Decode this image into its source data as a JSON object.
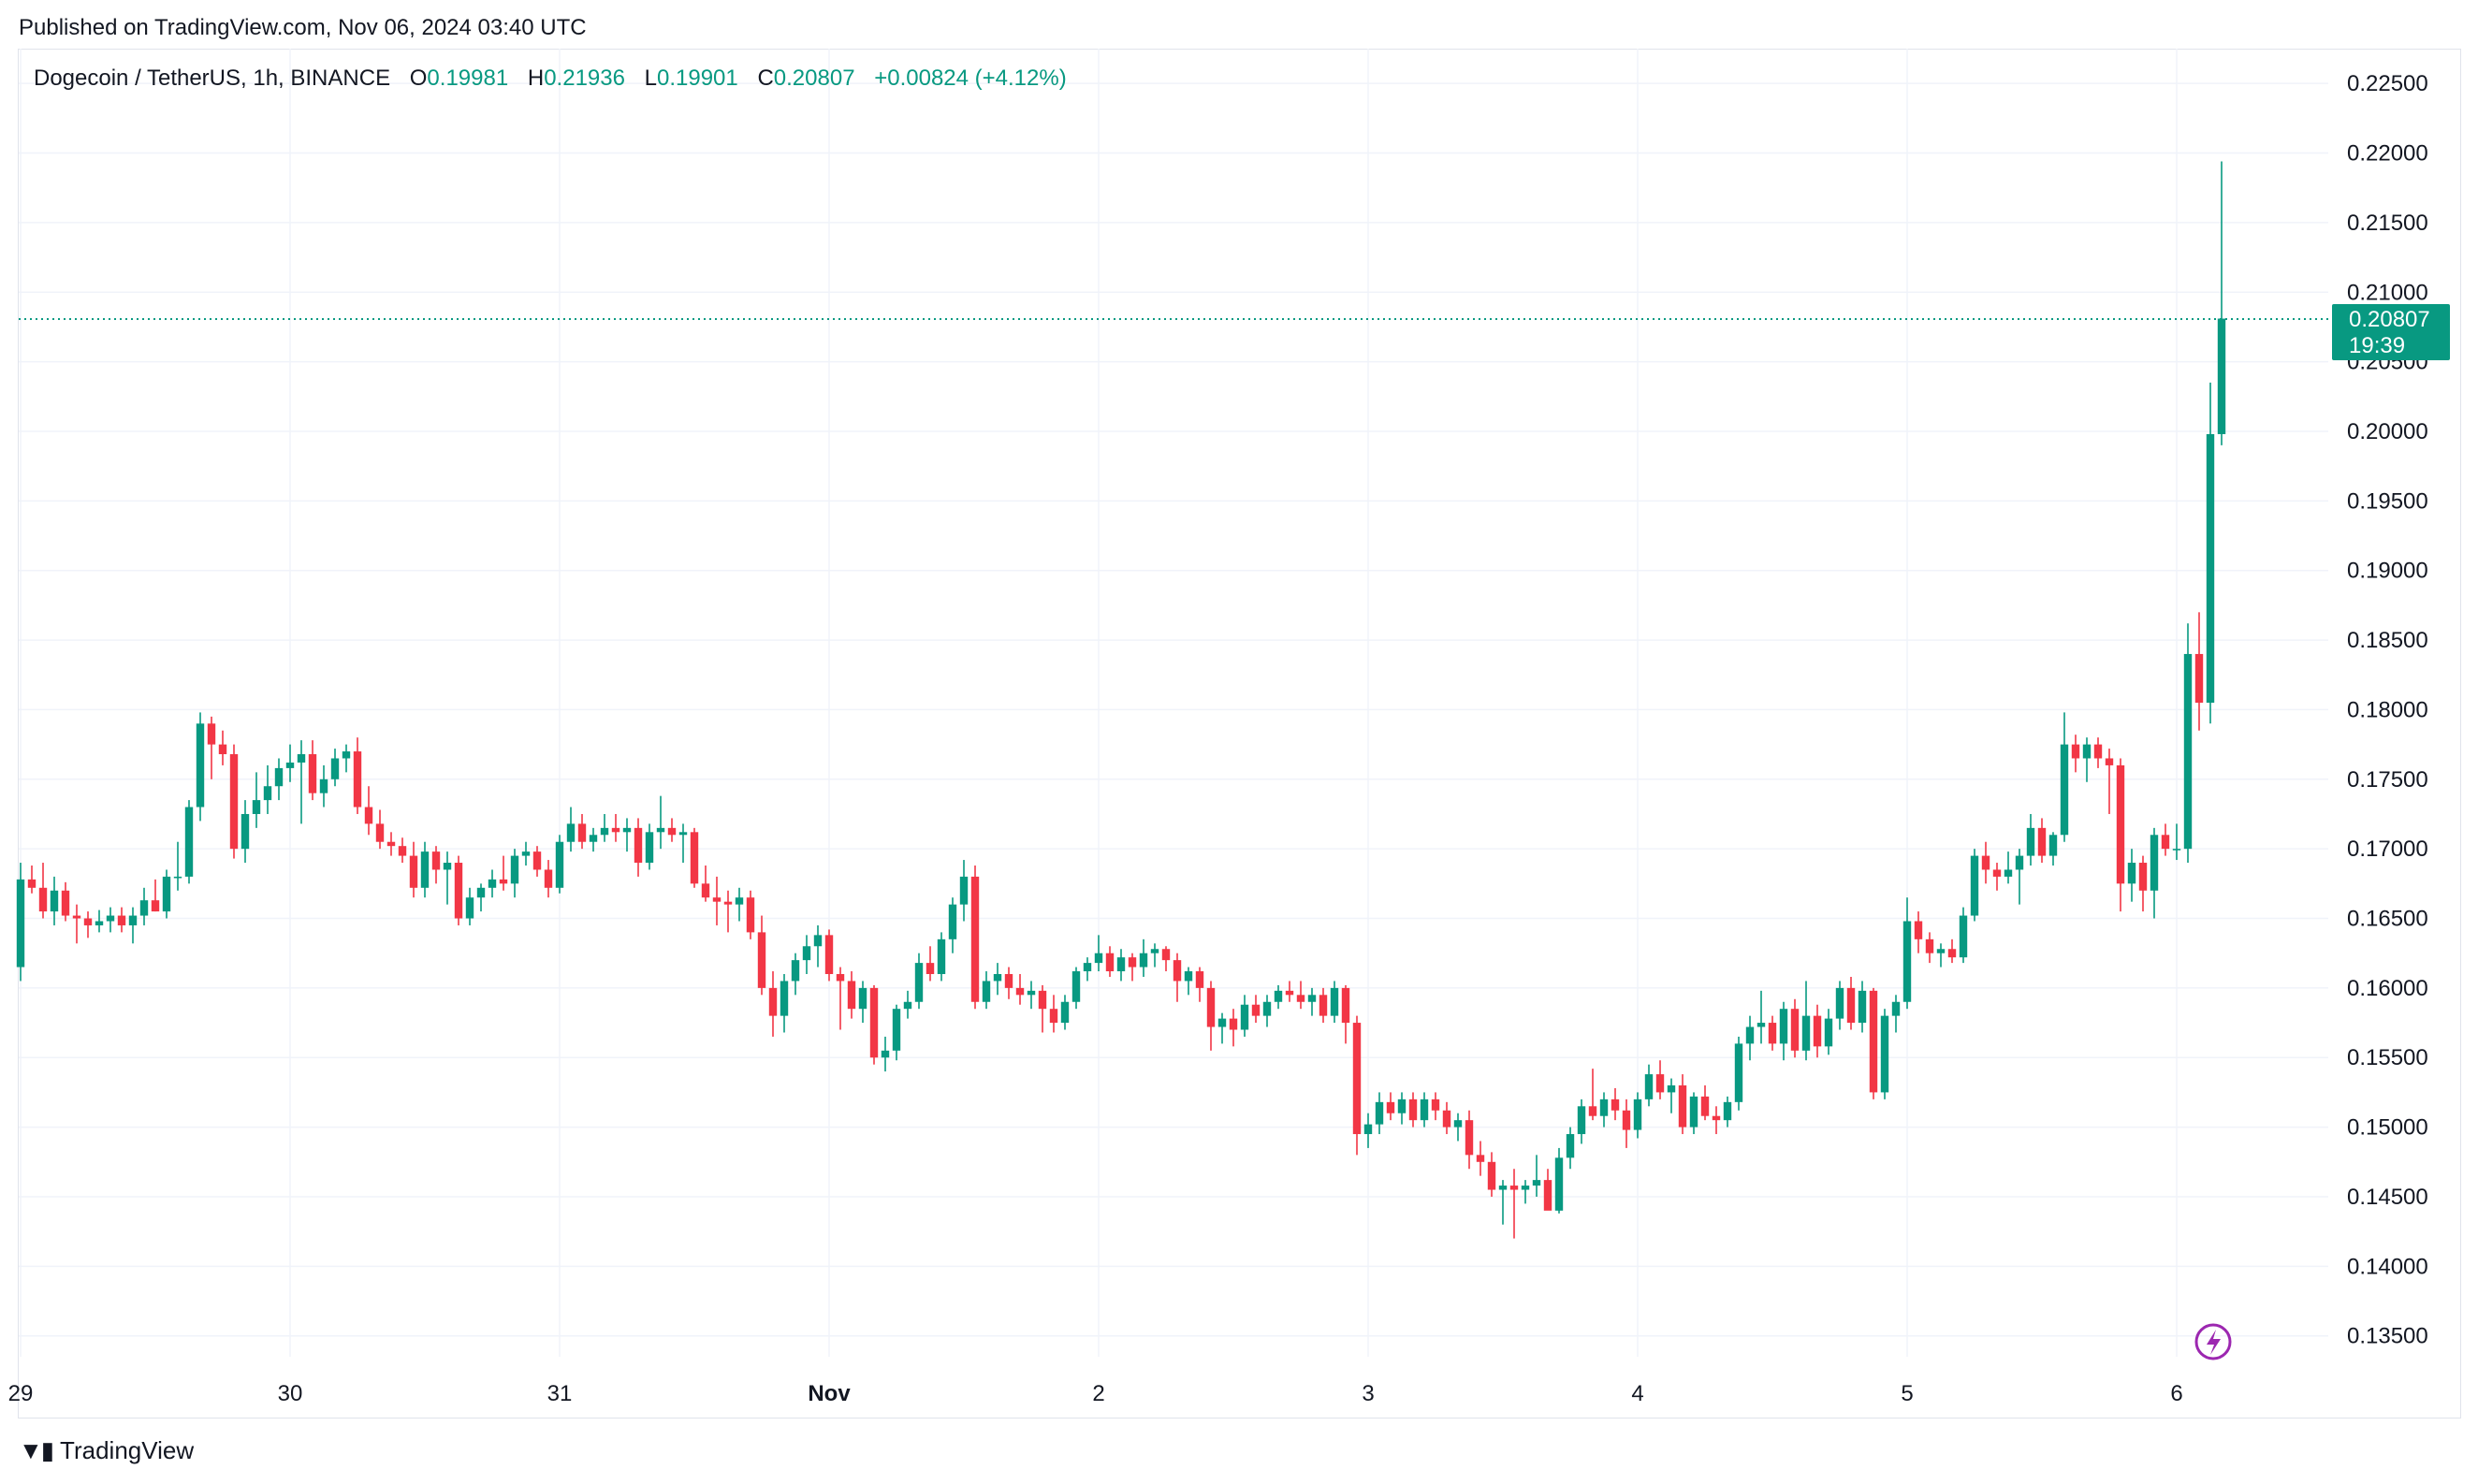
{
  "header": {
    "published": "Published on TradingView.com, Nov 06, 2024 03:40 UTC"
  },
  "legend": {
    "symbol": "Dogecoin / TetherUS, 1h, BINANCE",
    "o_label": "O",
    "o_value": "0.19981",
    "h_label": "H",
    "h_value": "0.21936",
    "l_label": "L",
    "l_value": "0.19901",
    "c_label": "C",
    "c_value": "0.20807",
    "change": "+0.00824 (+4.12%)"
  },
  "footer": {
    "brand": "TradingView",
    "logo_icon": "tradingview-logo-icon"
  },
  "colors": {
    "up": "#089981",
    "down": "#f23645",
    "grid": "#f0f3fa",
    "text": "#131722"
  },
  "chart_data": {
    "type": "candlestick",
    "title": "",
    "ylim": [
      0.1335,
      0.2275
    ],
    "yticks": [
      "0.22500",
      "0.22000",
      "0.21500",
      "0.21000",
      "0.20500",
      "0.20000",
      "0.19500",
      "0.19000",
      "0.18500",
      "0.18000",
      "0.17500",
      "0.17000",
      "0.16500",
      "0.16000",
      "0.15500",
      "0.15000",
      "0.14500",
      "0.14000",
      "0.13500"
    ],
    "xticks": [
      {
        "label": "29",
        "bar": 0
      },
      {
        "label": "30",
        "bar": 24
      },
      {
        "label": "31",
        "bar": 48
      },
      {
        "label": "Nov",
        "bar": 72
      },
      {
        "label": "2",
        "bar": 96
      },
      {
        "label": "3",
        "bar": 120
      },
      {
        "label": "4",
        "bar": 144
      },
      {
        "label": "5",
        "bar": 168
      },
      {
        "label": "6",
        "bar": 192
      }
    ],
    "last_price": "0.20807",
    "countdown": "19:39",
    "grid": true,
    "ohlc": [
      [
        0.1615,
        0.169,
        0.1605,
        0.1678
      ],
      [
        0.1678,
        0.1688,
        0.1668,
        0.1672
      ],
      [
        0.1672,
        0.169,
        0.165,
        0.1655
      ],
      [
        0.1655,
        0.168,
        0.1645,
        0.167
      ],
      [
        0.167,
        0.1676,
        0.1648,
        0.1652
      ],
      [
        0.1652,
        0.166,
        0.1632,
        0.165
      ],
      [
        0.165,
        0.1655,
        0.1636,
        0.1645
      ],
      [
        0.1645,
        0.1656,
        0.164,
        0.1648
      ],
      [
        0.1648,
        0.1658,
        0.164,
        0.1652
      ],
      [
        0.1652,
        0.1658,
        0.164,
        0.1645
      ],
      [
        0.1645,
        0.1658,
        0.1632,
        0.1652
      ],
      [
        0.1652,
        0.1672,
        0.1645,
        0.1663
      ],
      [
        0.1663,
        0.1678,
        0.1655,
        0.1655
      ],
      [
        0.1655,
        0.1685,
        0.165,
        0.168
      ],
      [
        0.168,
        0.1705,
        0.167,
        0.168
      ],
      [
        0.168,
        0.1735,
        0.1675,
        0.173
      ],
      [
        0.173,
        0.1798,
        0.172,
        0.179
      ],
      [
        0.179,
        0.1795,
        0.175,
        0.1775
      ],
      [
        0.1775,
        0.1785,
        0.176,
        0.1768
      ],
      [
        0.1768,
        0.1775,
        0.1693,
        0.17
      ],
      [
        0.17,
        0.1735,
        0.169,
        0.1725
      ],
      [
        0.1725,
        0.1755,
        0.1715,
        0.1735
      ],
      [
        0.1735,
        0.176,
        0.1725,
        0.1745
      ],
      [
        0.1745,
        0.1765,
        0.1735,
        0.1758
      ],
      [
        0.1758,
        0.1775,
        0.1748,
        0.1762
      ],
      [
        0.1762,
        0.1778,
        0.1718,
        0.1768
      ],
      [
        0.1768,
        0.1778,
        0.1735,
        0.174
      ],
      [
        0.174,
        0.176,
        0.173,
        0.175
      ],
      [
        0.175,
        0.1772,
        0.1745,
        0.1765
      ],
      [
        0.1765,
        0.1775,
        0.1755,
        0.177
      ],
      [
        0.177,
        0.178,
        0.1725,
        0.173
      ],
      [
        0.173,
        0.1745,
        0.171,
        0.1718
      ],
      [
        0.1718,
        0.1728,
        0.17,
        0.1705
      ],
      [
        0.1705,
        0.1712,
        0.1695,
        0.1702
      ],
      [
        0.1702,
        0.1708,
        0.169,
        0.1695
      ],
      [
        0.1695,
        0.1705,
        0.1665,
        0.1672
      ],
      [
        0.1672,
        0.1705,
        0.1665,
        0.1698
      ],
      [
        0.1698,
        0.1702,
        0.1675,
        0.1685
      ],
      [
        0.1685,
        0.1698,
        0.166,
        0.169
      ],
      [
        0.169,
        0.1695,
        0.1645,
        0.165
      ],
      [
        0.165,
        0.1672,
        0.1645,
        0.1665
      ],
      [
        0.1665,
        0.1675,
        0.1655,
        0.1672
      ],
      [
        0.1672,
        0.1685,
        0.1665,
        0.1678
      ],
      [
        0.1678,
        0.1695,
        0.167,
        0.1675
      ],
      [
        0.1675,
        0.17,
        0.1665,
        0.1695
      ],
      [
        0.1695,
        0.1705,
        0.1688,
        0.1698
      ],
      [
        0.1698,
        0.1702,
        0.168,
        0.1685
      ],
      [
        0.1685,
        0.1692,
        0.1665,
        0.1672
      ],
      [
        0.1672,
        0.171,
        0.1668,
        0.1705
      ],
      [
        0.1705,
        0.173,
        0.1698,
        0.1718
      ],
      [
        0.1718,
        0.1725,
        0.17,
        0.1705
      ],
      [
        0.1705,
        0.1715,
        0.1698,
        0.171
      ],
      [
        0.171,
        0.1725,
        0.1705,
        0.1715
      ],
      [
        0.1715,
        0.1725,
        0.1705,
        0.1712
      ],
      [
        0.1712,
        0.1722,
        0.1698,
        0.1715
      ],
      [
        0.1715,
        0.1722,
        0.168,
        0.169
      ],
      [
        0.169,
        0.1718,
        0.1685,
        0.1712
      ],
      [
        0.1712,
        0.1738,
        0.17,
        0.1715
      ],
      [
        0.1715,
        0.1722,
        0.1705,
        0.171
      ],
      [
        0.171,
        0.1718,
        0.169,
        0.1712
      ],
      [
        0.1712,
        0.1715,
        0.1672,
        0.1675
      ],
      [
        0.1675,
        0.1688,
        0.1662,
        0.1665
      ],
      [
        0.1665,
        0.168,
        0.1645,
        0.1662
      ],
      [
        0.1662,
        0.167,
        0.164,
        0.166
      ],
      [
        0.166,
        0.1672,
        0.1648,
        0.1665
      ],
      [
        0.1665,
        0.167,
        0.1635,
        0.164
      ],
      [
        0.164,
        0.1652,
        0.1595,
        0.16
      ],
      [
        0.16,
        0.1612,
        0.1565,
        0.158
      ],
      [
        0.158,
        0.161,
        0.1568,
        0.1605
      ],
      [
        0.1605,
        0.1625,
        0.1595,
        0.162
      ],
      [
        0.162,
        0.1638,
        0.161,
        0.163
      ],
      [
        0.163,
        0.1645,
        0.1615,
        0.1638
      ],
      [
        0.1638,
        0.1642,
        0.1605,
        0.161
      ],
      [
        0.161,
        0.1615,
        0.157,
        0.1605
      ],
      [
        0.1605,
        0.1612,
        0.1578,
        0.1585
      ],
      [
        0.1585,
        0.1605,
        0.1575,
        0.16
      ],
      [
        0.16,
        0.1602,
        0.1545,
        0.155
      ],
      [
        0.155,
        0.1565,
        0.154,
        0.1555
      ],
      [
        0.1555,
        0.1588,
        0.1548,
        0.1585
      ],
      [
        0.1585,
        0.1598,
        0.1578,
        0.159
      ],
      [
        0.159,
        0.1625,
        0.1585,
        0.1618
      ],
      [
        0.1618,
        0.163,
        0.1605,
        0.161
      ],
      [
        0.161,
        0.164,
        0.1605,
        0.1635
      ],
      [
        0.1635,
        0.1665,
        0.1625,
        0.166
      ],
      [
        0.166,
        0.1692,
        0.1648,
        0.168
      ],
      [
        0.168,
        0.1688,
        0.1585,
        0.159
      ],
      [
        0.159,
        0.1612,
        0.1585,
        0.1605
      ],
      [
        0.1605,
        0.1618,
        0.1595,
        0.161
      ],
      [
        0.161,
        0.1615,
        0.1592,
        0.16
      ],
      [
        0.16,
        0.161,
        0.1588,
        0.1595
      ],
      [
        0.1595,
        0.1605,
        0.1585,
        0.1598
      ],
      [
        0.1598,
        0.1602,
        0.1568,
        0.1585
      ],
      [
        0.1585,
        0.1595,
        0.1568,
        0.1575
      ],
      [
        0.1575,
        0.1595,
        0.157,
        0.159
      ],
      [
        0.159,
        0.1615,
        0.1585,
        0.1612
      ],
      [
        0.1612,
        0.1622,
        0.1605,
        0.1618
      ],
      [
        0.1618,
        0.1638,
        0.1612,
        0.1625
      ],
      [
        0.1625,
        0.163,
        0.1608,
        0.1612
      ],
      [
        0.1612,
        0.1628,
        0.1605,
        0.1622
      ],
      [
        0.1622,
        0.1625,
        0.1605,
        0.1615
      ],
      [
        0.1615,
        0.1635,
        0.1608,
        0.1625
      ],
      [
        0.1625,
        0.1632,
        0.1615,
        0.1628
      ],
      [
        0.1628,
        0.163,
        0.1612,
        0.162
      ],
      [
        0.162,
        0.1625,
        0.159,
        0.1605
      ],
      [
        0.1605,
        0.1615,
        0.1595,
        0.1612
      ],
      [
        0.1612,
        0.1615,
        0.159,
        0.16
      ],
      [
        0.16,
        0.1605,
        0.1555,
        0.1572
      ],
      [
        0.1572,
        0.1582,
        0.156,
        0.1578
      ],
      [
        0.1578,
        0.1585,
        0.1558,
        0.157
      ],
      [
        0.157,
        0.1595,
        0.1565,
        0.1588
      ],
      [
        0.1588,
        0.1595,
        0.1575,
        0.158
      ],
      [
        0.158,
        0.1595,
        0.1572,
        0.159
      ],
      [
        0.159,
        0.1602,
        0.1585,
        0.1598
      ],
      [
        0.1598,
        0.1605,
        0.159,
        0.1595
      ],
      [
        0.1595,
        0.1605,
        0.1585,
        0.159
      ],
      [
        0.159,
        0.16,
        0.158,
        0.1595
      ],
      [
        0.1595,
        0.16,
        0.1575,
        0.158
      ],
      [
        0.158,
        0.1605,
        0.1575,
        0.16
      ],
      [
        0.16,
        0.1602,
        0.156,
        0.1575
      ],
      [
        0.1575,
        0.158,
        0.148,
        0.1495
      ],
      [
        0.1495,
        0.151,
        0.1485,
        0.1502
      ],
      [
        0.1502,
        0.1525,
        0.1495,
        0.1518
      ],
      [
        0.1518,
        0.1525,
        0.1505,
        0.151
      ],
      [
        0.151,
        0.1525,
        0.1502,
        0.152
      ],
      [
        0.152,
        0.1525,
        0.15,
        0.1505
      ],
      [
        0.1505,
        0.1525,
        0.15,
        0.152
      ],
      [
        0.152,
        0.1525,
        0.1505,
        0.1512
      ],
      [
        0.1512,
        0.1518,
        0.1495,
        0.15
      ],
      [
        0.15,
        0.151,
        0.149,
        0.1505
      ],
      [
        0.1505,
        0.1512,
        0.147,
        0.148
      ],
      [
        0.148,
        0.149,
        0.1465,
        0.1475
      ],
      [
        0.1475,
        0.1482,
        0.145,
        0.1455
      ],
      [
        0.1455,
        0.1462,
        0.143,
        0.1458
      ],
      [
        0.1458,
        0.147,
        0.142,
        0.1455
      ],
      [
        0.1455,
        0.1462,
        0.1445,
        0.1458
      ],
      [
        0.1458,
        0.148,
        0.145,
        0.1462
      ],
      [
        0.1462,
        0.147,
        0.1448,
        0.144
      ],
      [
        0.144,
        0.1485,
        0.1438,
        0.1478
      ],
      [
        0.1478,
        0.15,
        0.147,
        0.1495
      ],
      [
        0.1495,
        0.152,
        0.1488,
        0.1515
      ],
      [
        0.1515,
        0.1542,
        0.1505,
        0.1508
      ],
      [
        0.1508,
        0.1525,
        0.15,
        0.152
      ],
      [
        0.152,
        0.1528,
        0.1505,
        0.1512
      ],
      [
        0.1512,
        0.152,
        0.1485,
        0.1498
      ],
      [
        0.1498,
        0.1525,
        0.1492,
        0.152
      ],
      [
        0.152,
        0.1545,
        0.1515,
        0.1538
      ],
      [
        0.1538,
        0.1548,
        0.152,
        0.1525
      ],
      [
        0.1525,
        0.1535,
        0.151,
        0.153
      ],
      [
        0.153,
        0.1538,
        0.1495,
        0.15
      ],
      [
        0.15,
        0.1525,
        0.1495,
        0.1522
      ],
      [
        0.1522,
        0.153,
        0.1505,
        0.1508
      ],
      [
        0.1508,
        0.1515,
        0.1495,
        0.1505
      ],
      [
        0.1505,
        0.1522,
        0.15,
        0.1518
      ],
      [
        0.1518,
        0.1565,
        0.1512,
        0.156
      ],
      [
        0.156,
        0.158,
        0.1548,
        0.1572
      ],
      [
        0.1572,
        0.1598,
        0.156,
        0.1575
      ],
      [
        0.1575,
        0.158,
        0.1555,
        0.156
      ],
      [
        0.156,
        0.159,
        0.1548,
        0.1585
      ],
      [
        0.1585,
        0.1592,
        0.155,
        0.1555
      ],
      [
        0.1555,
        0.1605,
        0.1548,
        0.158
      ],
      [
        0.158,
        0.1588,
        0.155,
        0.1558
      ],
      [
        0.1558,
        0.1585,
        0.1552,
        0.1578
      ],
      [
        0.1578,
        0.1605,
        0.157,
        0.16
      ],
      [
        0.16,
        0.1608,
        0.157,
        0.1575
      ],
      [
        0.1575,
        0.1605,
        0.1568,
        0.1598
      ],
      [
        0.1598,
        0.16,
        0.152,
        0.1525
      ],
      [
        0.1525,
        0.1585,
        0.152,
        0.158
      ],
      [
        0.158,
        0.1595,
        0.1568,
        0.159
      ],
      [
        0.159,
        0.1665,
        0.1585,
        0.1648
      ],
      [
        0.1648,
        0.1655,
        0.1625,
        0.1635
      ],
      [
        0.1635,
        0.164,
        0.1618,
        0.1625
      ],
      [
        0.1625,
        0.1632,
        0.1615,
        0.1628
      ],
      [
        0.1628,
        0.1635,
        0.1618,
        0.1622
      ],
      [
        0.1622,
        0.1658,
        0.1618,
        0.1652
      ],
      [
        0.1652,
        0.17,
        0.1648,
        0.1695
      ],
      [
        0.1695,
        0.1705,
        0.1675,
        0.1685
      ],
      [
        0.1685,
        0.169,
        0.167,
        0.168
      ],
      [
        0.168,
        0.1698,
        0.1675,
        0.1685
      ],
      [
        0.1685,
        0.17,
        0.166,
        0.1695
      ],
      [
        0.1695,
        0.1725,
        0.1688,
        0.1715
      ],
      [
        0.1715,
        0.1722,
        0.169,
        0.1695
      ],
      [
        0.1695,
        0.1712,
        0.1688,
        0.171
      ],
      [
        0.171,
        0.1798,
        0.1705,
        0.1775
      ],
      [
        0.1775,
        0.1782,
        0.1755,
        0.1765
      ],
      [
        0.1765,
        0.178,
        0.1748,
        0.1775
      ],
      [
        0.1775,
        0.178,
        0.1758,
        0.1765
      ],
      [
        0.1765,
        0.1772,
        0.1725,
        0.176
      ],
      [
        0.176,
        0.1765,
        0.1655,
        0.1675
      ],
      [
        0.1675,
        0.17,
        0.1662,
        0.169
      ],
      [
        0.169,
        0.1695,
        0.1655,
        0.167
      ],
      [
        0.167,
        0.1715,
        0.165,
        0.171
      ],
      [
        0.171,
        0.1718,
        0.1695,
        0.17
      ],
      [
        0.17,
        0.1718,
        0.1692,
        0.17
      ],
      [
        0.17,
        0.1862,
        0.169,
        0.184
      ],
      [
        0.184,
        0.187,
        0.1785,
        0.1805
      ],
      [
        0.1805,
        0.2035,
        0.179,
        0.1998
      ],
      [
        0.1998,
        0.2194,
        0.199,
        0.2081
      ]
    ]
  }
}
